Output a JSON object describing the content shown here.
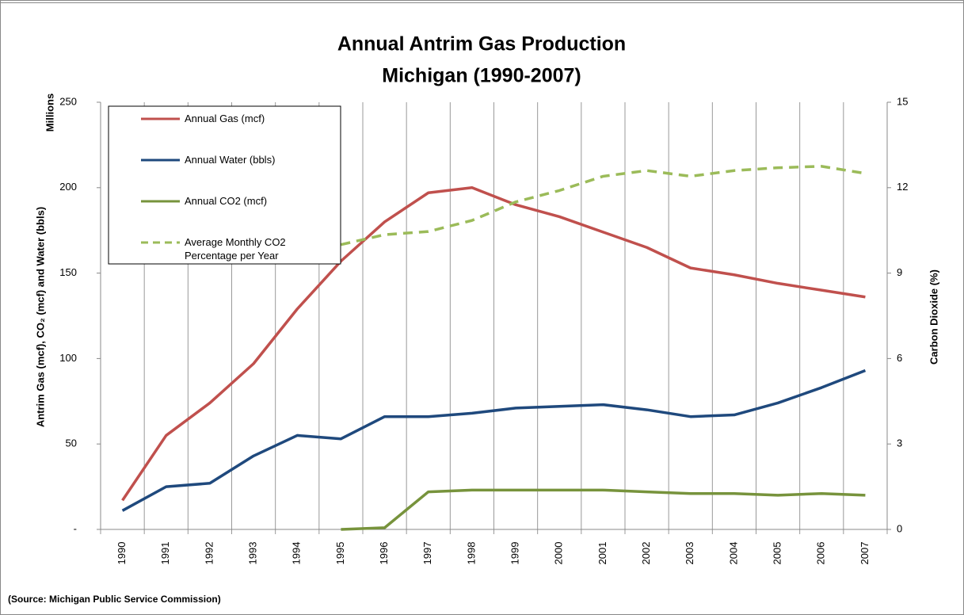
{
  "chart_data": {
    "type": "line",
    "title": "Annual Antrim Gas Production",
    "subtitle": "Michigan (1990-2007)",
    "y_label": "Antrim Gas (mcf),  CO₂ (mcf) and Water (bbls)",
    "y_unit_label": "Millions",
    "y2_label": "Carbon Dioxide (%)",
    "source": "(Source: Michigan Public Service Commission)",
    "categories": [
      "1990",
      "1991",
      "1992",
      "1993",
      "1994",
      "1995",
      "1996",
      "1997",
      "1998",
      "1999",
      "2000",
      "2001",
      "2002",
      "2003",
      "2004",
      "2005",
      "2006",
      "2007"
    ],
    "ylim": [
      0,
      250
    ],
    "yticks": [
      {
        "value": 0,
        "label": "-"
      },
      50,
      100,
      150,
      200,
      250
    ],
    "y2lim": [
      0,
      15
    ],
    "y2ticks": [
      0,
      3,
      6,
      9,
      12,
      15
    ],
    "legend": "upper left",
    "series": [
      {
        "name": "Annual Gas (mcf)",
        "color": "#c0504d",
        "values": [
          17,
          55,
          74,
          97,
          129,
          157,
          180,
          197,
          200,
          190,
          183,
          174,
          165,
          153,
          149,
          144,
          140,
          136
        ]
      },
      {
        "name": "Annual Water (bbls)",
        "color": "#1f497d",
        "values": [
          11,
          25,
          27,
          43,
          55,
          53,
          66,
          66,
          68,
          71,
          72,
          73,
          70,
          66,
          67,
          74,
          83,
          93
        ]
      },
      {
        "name": "Annual CO2 (mcf)",
        "color": "#77933c",
        "values": [
          null,
          null,
          null,
          null,
          null,
          0,
          1,
          22,
          23,
          23,
          23,
          23,
          22,
          21,
          21,
          20,
          21,
          20
        ]
      },
      {
        "name": "Average Monthly CO2 Percentage per Year",
        "color": "#9bbb59",
        "dashed": true,
        "axis": "y2",
        "values": [
          null,
          null,
          null,
          null,
          null,
          10.0,
          10.35,
          10.46,
          10.85,
          11.5,
          11.9,
          12.4,
          12.6,
          12.4,
          12.6,
          12.7,
          12.75,
          12.5
        ]
      }
    ]
  }
}
